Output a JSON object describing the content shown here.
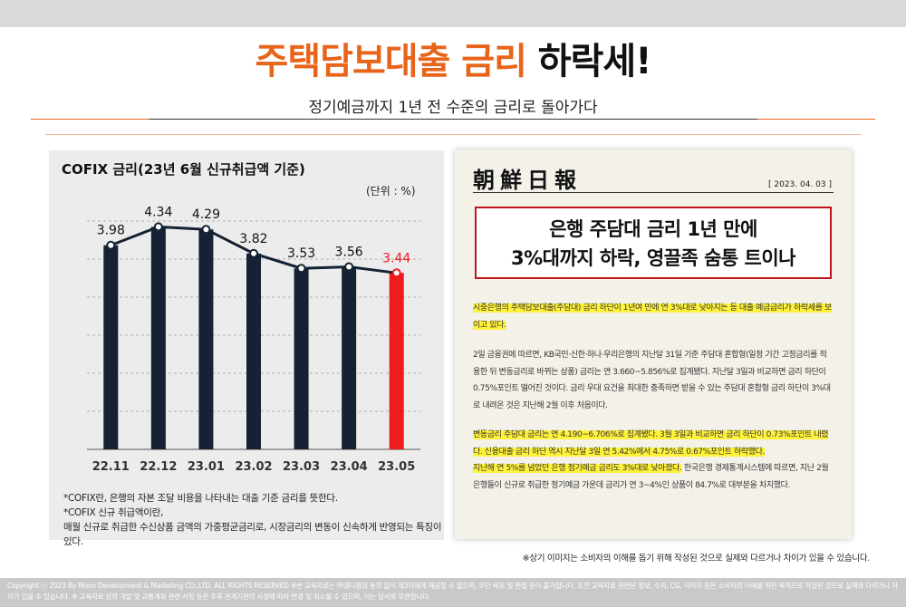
{
  "title": {
    "part1": "주택담보대출 금리",
    "part2": " 하락세!"
  },
  "subtitle": "정기예금까지 1년 전 수준의 금리로 돌아가다",
  "chart_panel": {
    "title": "COFIX 금리(23년 6월 신규취급액 기준)",
    "unit": "(단위 : %)",
    "notes": [
      "*COFIX란, 은행의 자본 조달 비용을 나타내는 대출 기준 금리를 뜻한다.",
      "*COFIX 신규 취급액이란,",
      "매월 신규로 취급한 수신상품 금액의 가중평균금리로, 시장금리의 변동이 신속하게 반영되는 특징이 있다."
    ]
  },
  "chart_data": {
    "type": "bar",
    "title": "COFIX 금리(23년 6월 신규취급액 기준)",
    "categories": [
      "22.11",
      "22.12",
      "23.01",
      "23.02",
      "23.03",
      "23.04",
      "23.05"
    ],
    "values": [
      3.98,
      4.34,
      4.29,
      3.82,
      3.53,
      3.56,
      3.44
    ],
    "value_labels": [
      "3.98",
      "4.34",
      "4.29",
      "3.82",
      "3.53",
      "3.56",
      "3.44"
    ],
    "ylim": [
      0,
      4.7
    ],
    "grid": true,
    "colors": {
      "bar": "#152233",
      "highlight_bar": "#ee1c1c",
      "line": "#152233",
      "grid": "#b0b0b0",
      "highlight_label": "#ee1c1c"
    },
    "highlight_index": 6
  },
  "newspaper": {
    "logo": "朝鮮日報",
    "date": "[ 2023. 04. 03 ]",
    "headline_line1": "은행 주담대 금리 1년 만에",
    "headline_line2": "3%대까지 하락, 영끌족 숨통 트이나",
    "para1": "시중은행의 주택담보대출(주담대) 금리 하단이 1년여 만에 연 3%대로 낮아지는 등 대출 예금금리가 하락세를 보이고 있다.",
    "para2": "2일 금융권에 따르면, KB국민·신한·하나·우리은행의 지난달 31일 기준 주담대 혼합형(일정 기간 고정금리를 적용한 뒤 변동금리로 바뀌는 상품) 금리는 연 3.660~5.856%로 집계됐다. 지난달 3일과 비교하면 금리 하단이 0.75%포인트 떨어진 것이다. 금리 우대 요건을 최대한 충족하면 받을 수 있는 주담대 혼합형 금리 하단이 3%대로 내려온 것은 지난해 2월 이후 처음이다.",
    "para3_hl1": "변동금리 주담대 금리는 연 4.190~6.706%로 집계됐다. 3월 3일과 비교하면 금리 하단이 0.73%포인트 내렸다. 신용대출 금리 하단 역시 지난달 3일 연 5.42%에서 4.75%로 0.67%포인트 하락했다.",
    "para3_hl2": "지난해 연 5%를 넘었던 은행 정기예금 금리도 3%대로 낮아졌다.",
    "para3_rest": " 한국은행 경제통계시스템에 따르면, 지난 2월 은행들이 신규로 취급한 정기예금 가운데 금리가 연 3~4%인 상품이 84.7%로 대부분을 차지했다."
  },
  "disclaimer": "※상기 이미지는 소비자의 이해를 돕기 위해 작성된 것으로 실제와 다르거나 차이가 있을 수 있습니다.",
  "footer": "Copyright ⓒ 2023 By Moon Development & Marketing CO.,LTD. ALL RIGHTS RESERVED ※본 교육자료는 ㈜엠디엠의 동의 없이 제3자에게 제공할 수 없으며, 무단 배포 및 편집 등이 불가합니다. 또한 교육자료 관련된 정보, 수치, CG, 이미지 등은 소비자의 이해를 위한 목적으로 작성된 것으로 실제와 다르거나 차이가 있을 수 있습니다. ※ 교육자료 상의 개발 및 교통계획 관련 사항 등은 추후 관계기관의 사정에 따라 변경 및 취소될 수 있으며, 이는 당사와 무관합니다."
}
